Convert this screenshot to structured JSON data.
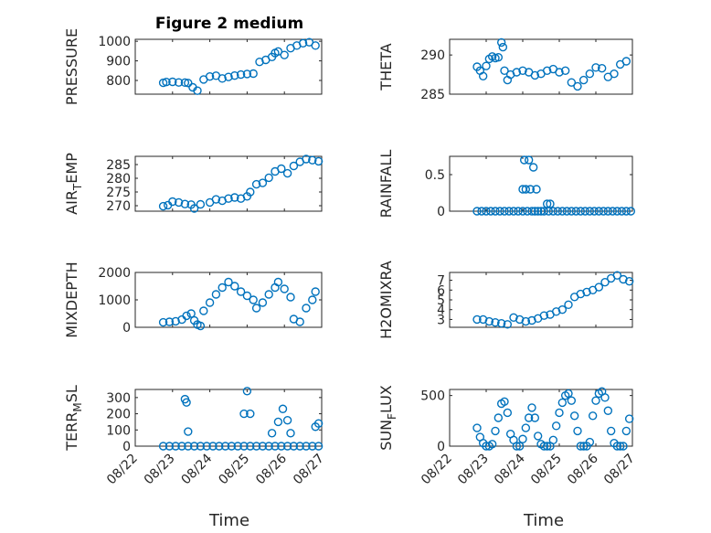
{
  "figure": {
    "title": "Figure 2 medium",
    "marker_color": "#0072BD",
    "x_label": "Time",
    "x_ticks": [
      "08/22",
      "08/23",
      "08/24",
      "08/25",
      "08/26",
      "08/27"
    ],
    "x_domain": [
      "08/22",
      "08/27"
    ]
  },
  "chart_data": [
    {
      "type": "scatter",
      "ylabel": "PRESSURE",
      "ylim": [
        730,
        1010
      ],
      "yticks": [
        800,
        900,
        1000
      ],
      "xticklabels_visible": false,
      "grid": true,
      "x": [
        "08/22 18:00",
        "08/22 20:00",
        "08/23 00:00",
        "08/23 04:00",
        "08/23 08:00",
        "08/23 10:00",
        "08/23 13:00",
        "08/23 16:00",
        "08/23 20:00",
        "08/24 00:00",
        "08/24 04:00",
        "08/24 08:00",
        "08/24 12:00",
        "08/24 16:00",
        "08/24 20:00",
        "08/25 00:00",
        "08/25 04:00",
        "08/25 08:00",
        "08/25 12:00",
        "08/25 16:00",
        "08/25 18:00",
        "08/25 20:00",
        "08/26 00:00",
        "08/26 04:00",
        "08/26 08:00",
        "08/26 12:00",
        "08/26 16:00",
        "08/26 20:00"
      ],
      "y": [
        788,
        792,
        793,
        790,
        789,
        787,
        765,
        748,
        805,
        820,
        824,
        810,
        818,
        825,
        830,
        833,
        835,
        895,
        905,
        920,
        940,
        948,
        930,
        965,
        978,
        990,
        995,
        978
      ]
    },
    {
      "type": "scatter",
      "ylabel": "THETA",
      "ylim": [
        285,
        292
      ],
      "yticks": [
        285,
        290
      ],
      "xticklabels_visible": false,
      "grid": true,
      "x": [
        "08/22 18:00",
        "08/22 20:00",
        "08/22 22:00",
        "08/23 00:00",
        "08/23 02:00",
        "08/23 04:00",
        "08/23 06:00",
        "08/23 08:00",
        "08/23 10:00",
        "08/23 11:00",
        "08/23 12:00",
        "08/23 14:00",
        "08/23 16:00",
        "08/23 20:00",
        "08/24 00:00",
        "08/24 04:00",
        "08/24 08:00",
        "08/24 12:00",
        "08/24 16:00",
        "08/24 20:00",
        "08/25 00:00",
        "08/25 04:00",
        "08/25 08:00",
        "08/25 12:00",
        "08/25 16:00",
        "08/25 20:00",
        "08/26 00:00",
        "08/26 04:00",
        "08/26 08:00",
        "08/26 12:00",
        "08/26 16:00",
        "08/26 20:00"
      ],
      "y": [
        288.5,
        288.0,
        287.3,
        288.6,
        289.5,
        289.8,
        289.6,
        289.7,
        291.6,
        291.0,
        288.0,
        286.8,
        287.5,
        287.8,
        288.0,
        287.8,
        287.4,
        287.6,
        288.0,
        288.2,
        287.8,
        288.0,
        286.5,
        286.0,
        286.8,
        287.6,
        288.4,
        288.3,
        287.2,
        287.6,
        288.8,
        289.2
      ]
    },
    {
      "type": "scatter",
      "ylabel": "AIR_TEMP",
      "ylim": [
        268,
        288
      ],
      "yticks": [
        270,
        275,
        280,
        285
      ],
      "xticklabels_visible": false,
      "grid": true,
      "x": [
        "08/22 18:00",
        "08/22 21:00",
        "08/23 00:00",
        "08/23 04:00",
        "08/23 08:00",
        "08/23 12:00",
        "08/23 14:00",
        "08/23 18:00",
        "08/24 00:00",
        "08/24 04:00",
        "08/24 08:00",
        "08/24 12:00",
        "08/24 16:00",
        "08/24 20:00",
        "08/25 00:00",
        "08/25 02:00",
        "08/25 06:00",
        "08/25 10:00",
        "08/25 14:00",
        "08/25 18:00",
        "08/25 22:00",
        "08/26 02:00",
        "08/26 06:00",
        "08/26 10:00",
        "08/26 14:00",
        "08/26 18:00",
        "08/26 22:00"
      ],
      "y": [
        269.8,
        270.2,
        271.5,
        271.2,
        270.6,
        270.4,
        269.0,
        270.5,
        271.2,
        272.3,
        271.8,
        272.6,
        273.0,
        272.6,
        273.4,
        275.0,
        277.8,
        278.3,
        280.2,
        282.5,
        283.5,
        281.8,
        284.5,
        286.0,
        287.0,
        286.6,
        286.2
      ]
    },
    {
      "type": "scatter",
      "ylabel": "RAINFALL",
      "ylim": [
        0,
        0.75
      ],
      "yticks": [
        0,
        0.5
      ],
      "xticklabels_visible": false,
      "grid": true,
      "x": [
        "08/22 18:00",
        "08/22 21:00",
        "08/23 00:00",
        "08/23 03:00",
        "08/23 06:00",
        "08/23 09:00",
        "08/23 12:00",
        "08/23 15:00",
        "08/23 18:00",
        "08/23 21:00",
        "08/24 00:00",
        "08/24 03:00",
        "08/24 06:00",
        "08/24 08:00",
        "08/24 10:00",
        "08/24 12:00",
        "08/24 14:00",
        "08/24 17:00",
        "08/24 20:00",
        "08/24 23:00",
        "08/25 02:00",
        "08/25 05:00",
        "08/25 08:00",
        "08/25 11:00",
        "08/25 14:00",
        "08/25 17:00",
        "08/25 20:00",
        "08/25 23:00",
        "08/26 02:00",
        "08/26 05:00",
        "08/26 08:00",
        "08/26 11:00",
        "08/26 14:00",
        "08/26 17:00",
        "08/26 20:00",
        "08/26 23:00",
        "08/24 00:00",
        "08/24 01:00",
        "08/24 02:00",
        "08/24 04:00",
        "08/24 05:00",
        "08/24 07:00",
        "08/24 09:00",
        "08/24 16:00",
        "08/24 18:00"
      ],
      "y": [
        0,
        0,
        0,
        0,
        0,
        0,
        0,
        0,
        0,
        0,
        0,
        0,
        0,
        0,
        0,
        0,
        0,
        0,
        0,
        0,
        0,
        0,
        0,
        0,
        0,
        0,
        0,
        0,
        0,
        0,
        0,
        0,
        0,
        0,
        0,
        0,
        0.3,
        0.7,
        0.3,
        0.7,
        0.3,
        0.6,
        0.3,
        0.1,
        0.1
      ]
    },
    {
      "type": "scatter",
      "ylabel": "MIXDEPTH",
      "ylim": [
        0,
        2000
      ],
      "yticks": [
        0,
        1000,
        2000
      ],
      "xticklabels_visible": false,
      "grid": true,
      "x": [
        "08/22 18:00",
        "08/22 22:00",
        "08/23 02:00",
        "08/23 06:00",
        "08/23 09:00",
        "08/23 12:00",
        "08/23 14:00",
        "08/23 16:00",
        "08/23 18:00",
        "08/23 20:00",
        "08/24 00:00",
        "08/24 04:00",
        "08/24 08:00",
        "08/24 12:00",
        "08/24 16:00",
        "08/24 20:00",
        "08/25 00:00",
        "08/25 04:00",
        "08/25 06:00",
        "08/25 10:00",
        "08/25 14:00",
        "08/25 18:00",
        "08/25 20:00",
        "08/26 00:00",
        "08/26 04:00",
        "08/26 06:00",
        "08/26 10:00",
        "08/26 14:00",
        "08/26 18:00",
        "08/26 20:00"
      ],
      "y": [
        180,
        200,
        220,
        280,
        420,
        500,
        250,
        100,
        50,
        600,
        900,
        1200,
        1450,
        1650,
        1500,
        1300,
        1150,
        1000,
        700,
        900,
        1200,
        1450,
        1650,
        1400,
        1100,
        300,
        200,
        700,
        1000,
        1300
      ]
    },
    {
      "type": "scatter",
      "ylabel": "H2OMIXRA",
      "ylim": [
        2.2,
        7.8
      ],
      "yticks": [
        3,
        4,
        5,
        6,
        7
      ],
      "xticklabels_visible": false,
      "grid": true,
      "x": [
        "08/22 18:00",
        "08/22 22:00",
        "08/23 02:00",
        "08/23 06:00",
        "08/23 10:00",
        "08/23 14:00",
        "08/23 18:00",
        "08/23 22:00",
        "08/24 02:00",
        "08/24 06:00",
        "08/24 10:00",
        "08/24 14:00",
        "08/24 18:00",
        "08/24 22:00",
        "08/25 02:00",
        "08/25 06:00",
        "08/25 10:00",
        "08/25 14:00",
        "08/25 18:00",
        "08/25 22:00",
        "08/26 02:00",
        "08/26 06:00",
        "08/26 10:00",
        "08/26 14:00",
        "08/26 18:00",
        "08/26 22:00"
      ],
      "y": [
        3.0,
        3.0,
        2.8,
        2.7,
        2.6,
        2.5,
        3.2,
        3.0,
        2.8,
        2.9,
        3.1,
        3.4,
        3.5,
        3.8,
        4.0,
        4.5,
        5.3,
        5.6,
        5.8,
        6.0,
        6.3,
        6.8,
        7.2,
        7.5,
        7.1,
        6.9
      ]
    },
    {
      "type": "scatter",
      "ylabel": "TERR_MSL",
      "ylim": [
        0,
        350
      ],
      "yticks": [
        0,
        100,
        200,
        300
      ],
      "xticklabels_visible": true,
      "grid": true,
      "x": [
        "08/22 18:00",
        "08/22 22:00",
        "08/23 02:00",
        "08/23 06:00",
        "08/23 10:00",
        "08/23 14:00",
        "08/23 18:00",
        "08/23 22:00",
        "08/24 02:00",
        "08/24 06:00",
        "08/24 10:00",
        "08/24 14:00",
        "08/24 18:00",
        "08/24 22:00",
        "08/25 02:00",
        "08/25 06:00",
        "08/25 10:00",
        "08/25 14:00",
        "08/25 18:00",
        "08/25 22:00",
        "08/26 02:00",
        "08/26 06:00",
        "08/26 10:00",
        "08/26 14:00",
        "08/26 18:00",
        "08/26 22:00",
        "08/23 08:00",
        "08/23 09:00",
        "08/23 10:00",
        "08/24 22:00",
        "08/25 00:00",
        "08/25 02:00",
        "08/25 16:00",
        "08/25 20:00",
        "08/25 23:00",
        "08/26 02:00",
        "08/26 04:00",
        "08/26 20:00",
        "08/26 22:00"
      ],
      "y": [
        0,
        0,
        0,
        0,
        0,
        0,
        0,
        0,
        0,
        0,
        0,
        0,
        0,
        0,
        0,
        0,
        0,
        0,
        0,
        0,
        0,
        0,
        0,
        0,
        0,
        0,
        290,
        270,
        90,
        200,
        340,
        200,
        80,
        150,
        230,
        160,
        80,
        120,
        140
      ]
    },
    {
      "type": "scatter",
      "ylabel": "SUN_FLUX",
      "ylim": [
        0,
        560
      ],
      "yticks": [
        0,
        500
      ],
      "xticklabels_visible": true,
      "grid": true,
      "x": [
        "08/22 18:00",
        "08/22 20:00",
        "08/22 22:00",
        "08/23 00:00",
        "08/23 02:00",
        "08/23 04:00",
        "08/23 06:00",
        "08/23 08:00",
        "08/23 10:00",
        "08/23 12:00",
        "08/23 14:00",
        "08/23 16:00",
        "08/23 18:00",
        "08/23 20:00",
        "08/23 22:00",
        "08/24 00:00",
        "08/24 02:00",
        "08/24 04:00",
        "08/24 06:00",
        "08/24 08:00",
        "08/24 10:00",
        "08/24 12:00",
        "08/24 14:00",
        "08/24 16:00",
        "08/24 18:00",
        "08/24 20:00",
        "08/24 22:00",
        "08/25 00:00",
        "08/25 02:00",
        "08/25 04:00",
        "08/25 06:00",
        "08/25 08:00",
        "08/25 10:00",
        "08/25 12:00",
        "08/25 14:00",
        "08/25 16:00",
        "08/25 18:00",
        "08/25 20:00",
        "08/25 22:00",
        "08/26 00:00",
        "08/26 02:00",
        "08/26 04:00",
        "08/26 06:00",
        "08/26 08:00",
        "08/26 10:00",
        "08/26 12:00",
        "08/26 14:00",
        "08/26 16:00",
        "08/26 18:00",
        "08/26 20:00",
        "08/26 22:00"
      ],
      "y": [
        180,
        90,
        30,
        0,
        0,
        20,
        150,
        280,
        420,
        440,
        330,
        120,
        60,
        0,
        0,
        70,
        180,
        280,
        380,
        280,
        100,
        20,
        0,
        0,
        0,
        60,
        200,
        330,
        430,
        500,
        520,
        450,
        300,
        150,
        0,
        0,
        0,
        40,
        300,
        450,
        520,
        540,
        480,
        350,
        150,
        30,
        0,
        0,
        0,
        150,
        270
      ]
    }
  ]
}
